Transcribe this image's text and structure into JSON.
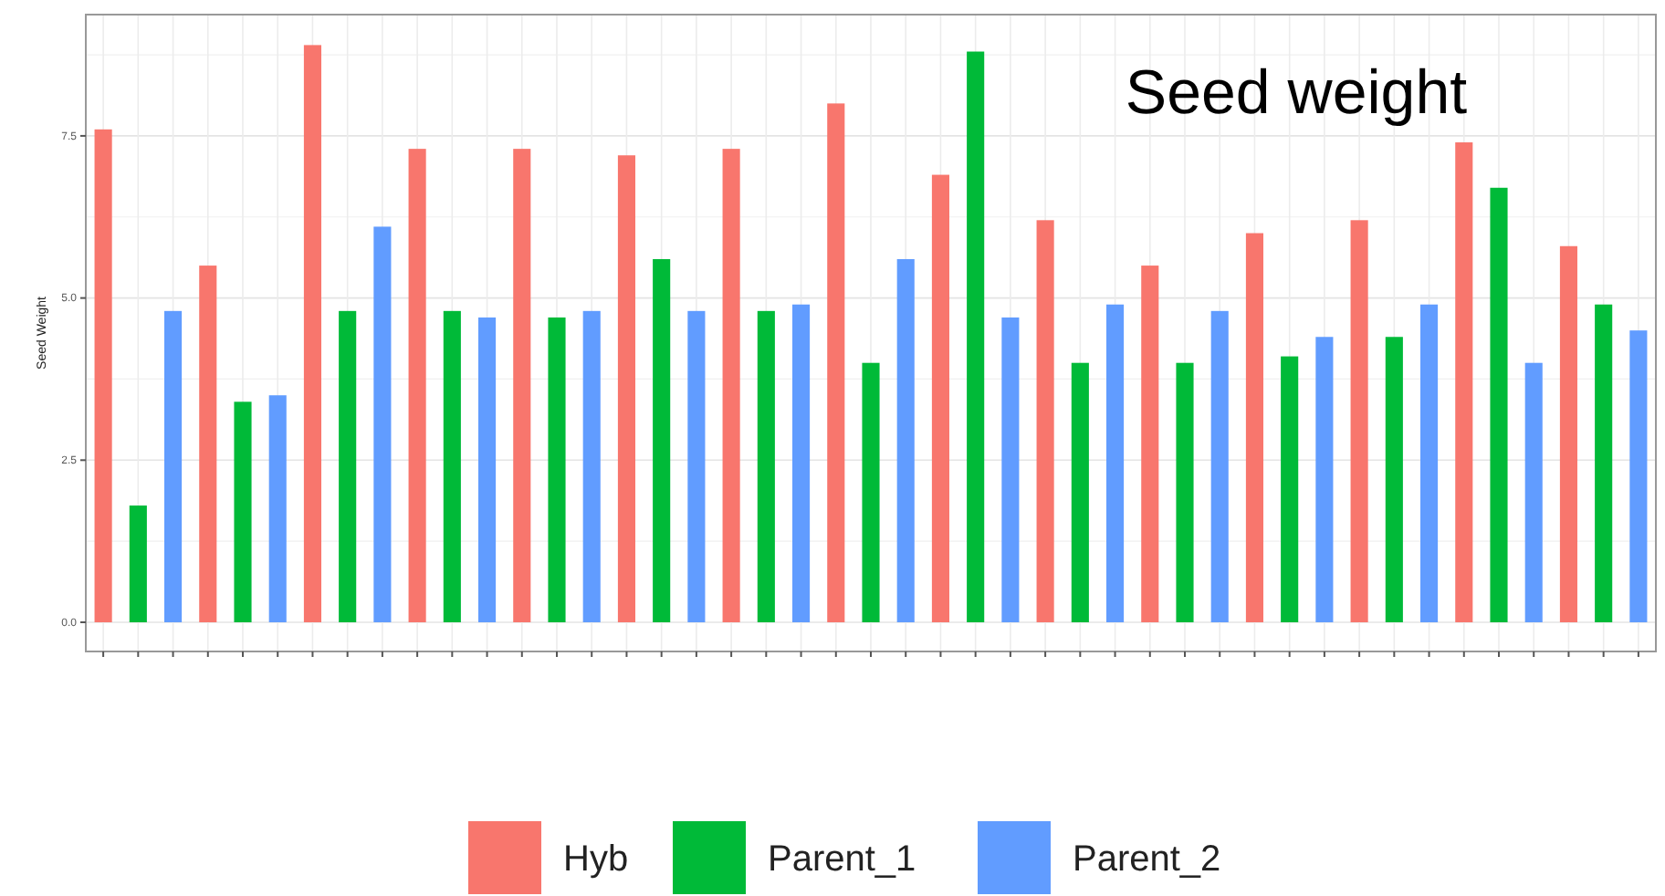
{
  "chart_data": {
    "type": "bar",
    "title": "Seed weight",
    "ylabel": "Seed Weight",
    "categories": [
      null,
      null,
      null,
      null,
      null,
      null,
      null,
      null,
      null,
      null,
      null,
      null,
      null,
      null,
      null,
      null,
      null,
      null,
      null,
      null,
      null,
      null,
      null,
      null,
      null,
      null,
      null,
      null,
      null,
      null,
      null,
      null,
      null,
      null,
      null,
      null,
      null,
      null,
      null,
      null,
      null,
      null,
      null,
      null,
      null
    ],
    "series": [
      {
        "name": "Hyb",
        "color": "#f8766d",
        "values": [
          7.6,
          null,
          null,
          5.5,
          null,
          null,
          8.9,
          null,
          null,
          7.3,
          null,
          null,
          7.3,
          null,
          null,
          7.2,
          null,
          null,
          7.3,
          null,
          null,
          8.0,
          null,
          null,
          6.9,
          null,
          null,
          6.2,
          null,
          null,
          5.5,
          null,
          null,
          6.0,
          null,
          null,
          6.2,
          null,
          null,
          7.4,
          null,
          null,
          5.8,
          null,
          null
        ]
      },
      {
        "name": "Parent_1",
        "color": "#00ba38",
        "values": [
          null,
          1.8,
          null,
          null,
          3.4,
          null,
          null,
          4.8,
          null,
          null,
          4.8,
          null,
          null,
          4.7,
          null,
          null,
          5.6,
          null,
          null,
          4.8,
          null,
          null,
          4.0,
          null,
          null,
          8.8,
          null,
          null,
          4.0,
          null,
          null,
          4.0,
          null,
          null,
          4.1,
          null,
          null,
          4.4,
          null,
          null,
          6.7,
          null,
          null,
          4.9,
          null
        ]
      },
      {
        "name": "Parent_2",
        "color": "#619cff",
        "values": [
          null,
          null,
          4.8,
          null,
          null,
          3.5,
          null,
          null,
          6.1,
          null,
          null,
          4.7,
          null,
          null,
          4.8,
          null,
          null,
          4.8,
          null,
          null,
          4.9,
          null,
          null,
          5.6,
          null,
          null,
          4.7,
          null,
          null,
          4.9,
          null,
          null,
          4.8,
          null,
          null,
          4.4,
          null,
          null,
          4.9,
          null,
          null,
          4.0,
          null,
          null,
          4.5
        ]
      }
    ],
    "ylim": [
      -0.45,
      9.37
    ],
    "yticks": [
      {
        "value": 0,
        "label": "0.0"
      },
      {
        "value": 2.5,
        "label": "2.5"
      },
      {
        "value": 5,
        "label": "5.0"
      },
      {
        "value": 7.5,
        "label": "7.5"
      }
    ],
    "grid": true,
    "legend": "bottom"
  }
}
